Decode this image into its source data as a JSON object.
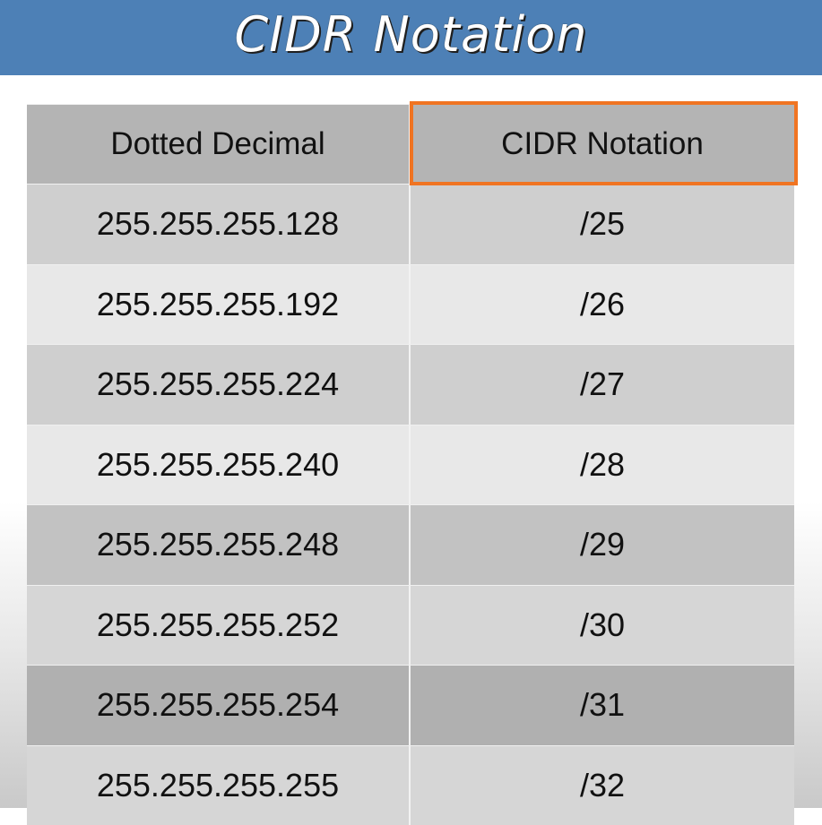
{
  "title": "CIDR Notation",
  "table": {
    "headers": [
      "Dotted Decimal",
      "CIDR Notation"
    ],
    "rows": [
      {
        "dotted": "255.255.255.128",
        "cidr": "/25"
      },
      {
        "dotted": "255.255.255.192",
        "cidr": "/26"
      },
      {
        "dotted": "255.255.255.224",
        "cidr": "/27"
      },
      {
        "dotted": "255.255.255.240",
        "cidr": "/28"
      },
      {
        "dotted": "255.255.255.248",
        "cidr": "/29"
      },
      {
        "dotted": "255.255.255.252",
        "cidr": "/30"
      },
      {
        "dotted": "255.255.255.254",
        "cidr": "/31"
      },
      {
        "dotted": "255.255.255.255",
        "cidr": "/32"
      }
    ]
  },
  "colors": {
    "title_bar": "#4d80b6",
    "highlight_border": "#f07422"
  }
}
